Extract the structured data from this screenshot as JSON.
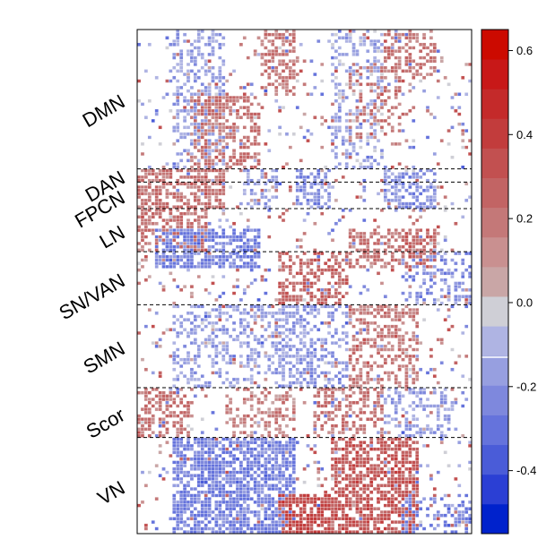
{
  "chart_data": {
    "type": "heatmap",
    "title": "",
    "xlabel": "",
    "ylabel": "",
    "row_groups": [
      {
        "name": "DMN",
        "rows": 42
      },
      {
        "name": "DAN",
        "rows": 4
      },
      {
        "name": "FPCN",
        "rows": 8
      },
      {
        "name": "LN",
        "rows": 13
      },
      {
        "name": "SN/VAN",
        "rows": 16
      },
      {
        "name": "SMN",
        "rows": 25
      },
      {
        "name": "Scor",
        "rows": 15
      },
      {
        "name": "VN",
        "rows": 29
      }
    ],
    "columns": 95,
    "colorbar": {
      "min": -0.55,
      "max": 0.65,
      "ticks": [
        0.6,
        0.4,
        0.2,
        0.0,
        -0.2,
        -0.4
      ],
      "tick_labels": [
        "0.6",
        "0.4",
        "0.2",
        "0.0",
        "-0.2",
        "-0.4"
      ],
      "colors": [
        "#0022cc",
        "#2b3fd4",
        "#4a5cd8",
        "#6573dc",
        "#7e88dd",
        "#979fe0",
        "#afb4e3",
        "#cfcfd6",
        "#c9a6a6",
        "#c99090",
        "#c47878",
        "#c26464",
        "#c25050",
        "#c23c3c",
        "#c42a2a",
        "#c81818",
        "#cc0a00"
      ]
    },
    "blocks": [
      {
        "r": [
          0,
          42
        ],
        "c": [
          10,
          25
        ],
        "v": -0.15,
        "d": 0.4
      },
      {
        "r": [
          0,
          20
        ],
        "c": [
          35,
          45
        ],
        "v": 0.18,
        "d": 0.5
      },
      {
        "r": [
          20,
          42
        ],
        "c": [
          15,
          35
        ],
        "v": 0.2,
        "d": 0.45
      },
      {
        "r": [
          0,
          42
        ],
        "c": [
          55,
          70
        ],
        "v": -0.12,
        "d": 0.3
      },
      {
        "r": [
          10,
          35
        ],
        "c": [
          60,
          75
        ],
        "v": 0.2,
        "d": 0.25
      },
      {
        "r": [
          0,
          15
        ],
        "c": [
          70,
          85
        ],
        "v": 0.2,
        "d": 0.45
      },
      {
        "r": [
          42,
          54
        ],
        "c": [
          0,
          25
        ],
        "v": 0.2,
        "d": 0.6
      },
      {
        "r": [
          42,
          54
        ],
        "c": [
          30,
          40
        ],
        "v": -0.15,
        "d": 0.4
      },
      {
        "r": [
          42,
          54
        ],
        "c": [
          45,
          55
        ],
        "v": -0.2,
        "d": 0.55
      },
      {
        "r": [
          42,
          54
        ],
        "c": [
          70,
          85
        ],
        "v": -0.2,
        "d": 0.5
      },
      {
        "r": [
          54,
          67
        ],
        "c": [
          0,
          20
        ],
        "v": 0.2,
        "d": 0.6
      },
      {
        "r": [
          60,
          72
        ],
        "c": [
          5,
          35
        ],
        "v": -0.25,
        "d": 0.65
      },
      {
        "r": [
          60,
          72
        ],
        "c": [
          60,
          75
        ],
        "v": 0.2,
        "d": 0.5
      },
      {
        "r": [
          60,
          72
        ],
        "c": [
          75,
          85
        ],
        "v": 0.25,
        "d": 0.55
      },
      {
        "r": [
          67,
          83
        ],
        "c": [
          40,
          60
        ],
        "v": 0.25,
        "d": 0.45
      },
      {
        "r": [
          67,
          83
        ],
        "c": [
          75,
          95
        ],
        "v": -0.2,
        "d": 0.35
      },
      {
        "r": [
          83,
          108
        ],
        "c": [
          10,
          50
        ],
        "v": -0.15,
        "d": 0.3
      },
      {
        "r": [
          83,
          108
        ],
        "c": [
          60,
          80
        ],
        "v": 0.18,
        "d": 0.4
      },
      {
        "r": [
          83,
          108
        ],
        "c": [
          40,
          60
        ],
        "v": -0.18,
        "d": 0.35
      },
      {
        "r": [
          108,
          123
        ],
        "c": [
          0,
          15
        ],
        "v": 0.2,
        "d": 0.5
      },
      {
        "r": [
          108,
          123
        ],
        "c": [
          25,
          45
        ],
        "v": 0.15,
        "d": 0.35
      },
      {
        "r": [
          108,
          123
        ],
        "c": [
          50,
          70
        ],
        "v": 0.2,
        "d": 0.45
      },
      {
        "r": [
          108,
          123
        ],
        "c": [
          70,
          90
        ],
        "v": -0.15,
        "d": 0.35
      },
      {
        "r": [
          123,
          152
        ],
        "c": [
          10,
          45
        ],
        "v": -0.25,
        "d": 0.7
      },
      {
        "r": [
          123,
          152
        ],
        "c": [
          55,
          80
        ],
        "v": 0.3,
        "d": 0.65
      },
      {
        "r": [
          140,
          152
        ],
        "c": [
          40,
          55
        ],
        "v": 0.35,
        "d": 0.7
      },
      {
        "r": [
          140,
          152
        ],
        "c": [
          75,
          95
        ],
        "v": -0.25,
        "d": 0.4
      }
    ],
    "background_density": 0.08
  }
}
